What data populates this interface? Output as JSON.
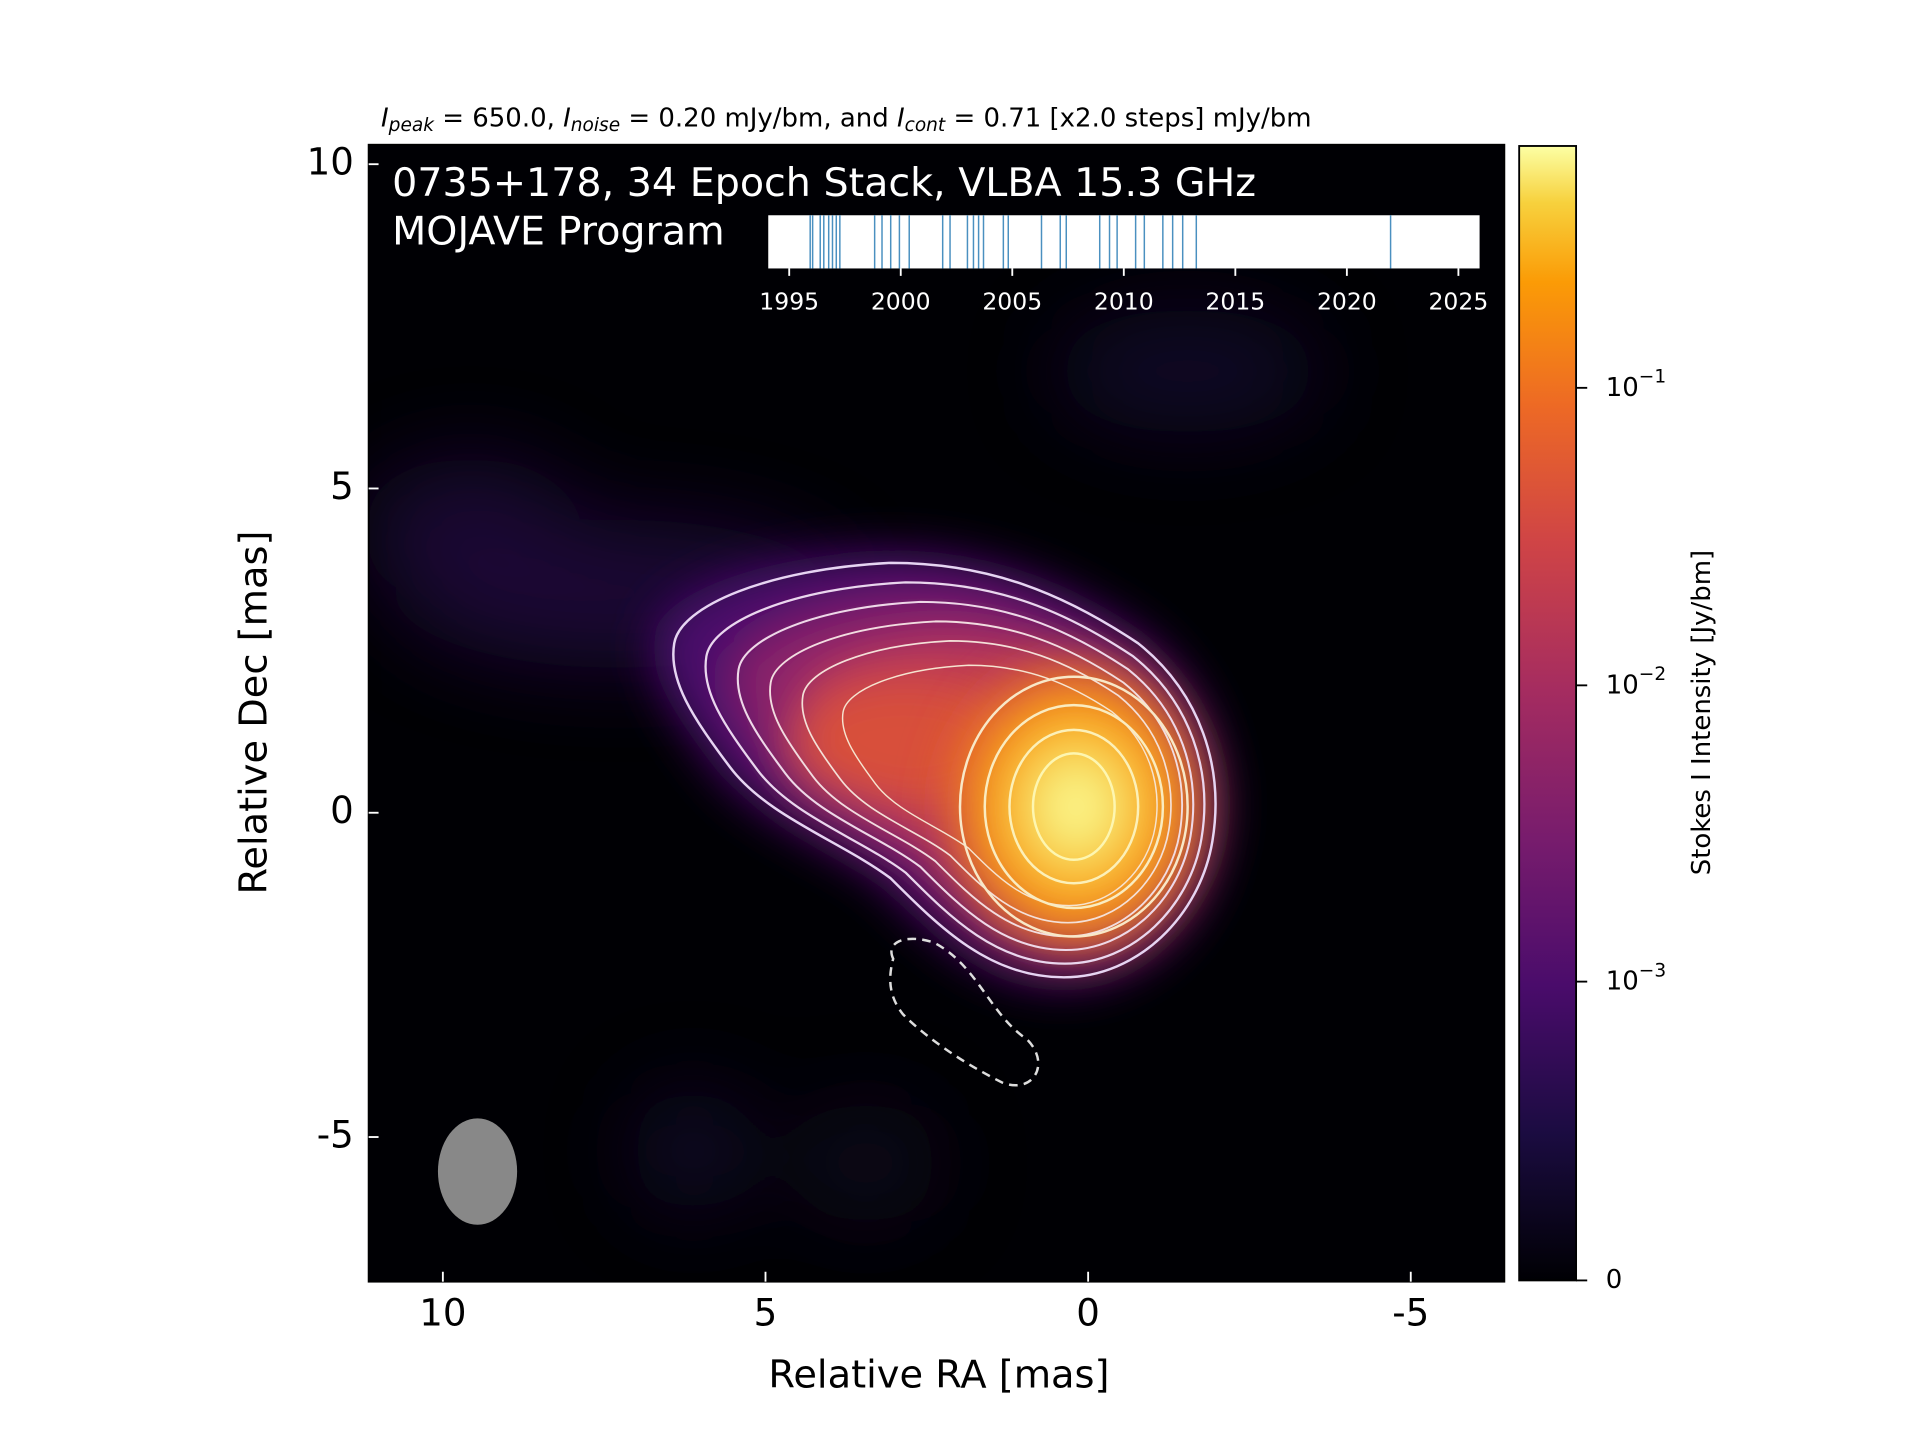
{
  "chart_data": {
    "type": "heatmap",
    "title": [
      {
        "italic": "I",
        "sub": "peak",
        "rest": " = 650.0, "
      },
      {
        "italic": "I",
        "sub": "noise",
        "rest": " = 0.20 mJy/bm, and "
      },
      {
        "italic": "I",
        "sub": "cont",
        "rest": " = 0.71 [x2.0 steps] mJy/bm"
      }
    ],
    "annotations": [
      "0735+178, 34 Epoch Stack, VLBA 15.3 GHz",
      "MOJAVE Program"
    ],
    "xlabel": "Relative RA [mas]",
    "ylabel": "Relative Dec [mas]",
    "xlim": [
      11.15,
      -6.45
    ],
    "xticks": [
      10,
      5,
      0,
      -5
    ],
    "ylim": [
      -7.23,
      10.3
    ],
    "yticks": [
      10,
      5,
      0,
      -5
    ],
    "colorbar": {
      "label": "Stokes I Intensity [Jy/bm]",
      "clim": [
        0,
        0.65
      ],
      "scale": {
        "type": "asinh",
        "linear_width": 0.0002
      },
      "ticks": [
        0,
        {
          "value": 0.001,
          "label": "10",
          "sup": "−3"
        },
        {
          "value": 0.01,
          "label": "10",
          "sup": "−2"
        },
        {
          "value": 0.1,
          "label": "10",
          "sup": "−1"
        }
      ]
    },
    "epochs": {
      "xlim": [
        1994.06,
        2025.95
      ],
      "xticks": [
        1995,
        2000,
        2005,
        2010,
        2015,
        2020,
        2025
      ],
      "color": "#4a90c0",
      "x": [
        1995.94,
        1996.05,
        1996.39,
        1996.55,
        1996.77,
        1996.94,
        1997.11,
        1997.27,
        1998.83,
        1999.16,
        1999.55,
        1999.94,
        2000.38,
        2001.88,
        2002.21,
        2002.99,
        2003.26,
        2003.49,
        2003.71,
        2004.6,
        2004.82,
        2006.31,
        2007.15,
        2007.42,
        2008.92,
        2009.36,
        2009.7,
        2010.53,
        2010.92,
        2011.75,
        2012.19,
        2012.64,
        2013.25,
        2021.96
      ]
    }
  }
}
